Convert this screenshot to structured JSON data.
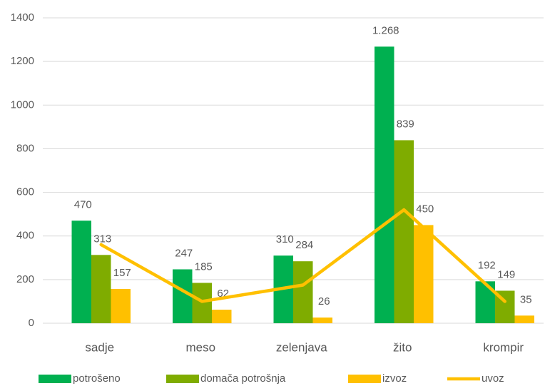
{
  "chart_data": {
    "type": "bar",
    "categories": [
      "sadje",
      "meso",
      "zelenjava",
      "žito",
      "krompir"
    ],
    "series": [
      {
        "name": "potrošeno",
        "color": "#00b050",
        "values": [
          470,
          247,
          310,
          1268,
          192
        ],
        "value_labels": [
          "470",
          "247",
          "310",
          "1.268",
          "192"
        ]
      },
      {
        "name": "domača potrošnja",
        "color": "#7fac00",
        "values": [
          313,
          185,
          284,
          839,
          149
        ]
      },
      {
        "name": "izvoz",
        "color": "#ffc000",
        "values": [
          157,
          62,
          26,
          450,
          35
        ]
      },
      {
        "name": "uvoz",
        "type": "line",
        "color": "#ffc000",
        "values": [
          360,
          100,
          175,
          520,
          100
        ]
      }
    ],
    "ylim": [
      0,
      1400
    ],
    "yticks": [
      0,
      200,
      400,
      600,
      800,
      1000,
      1200,
      1400
    ],
    "grid": true,
    "legend": "bottom"
  }
}
